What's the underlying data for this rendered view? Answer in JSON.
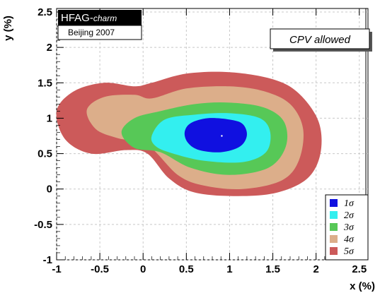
{
  "chart_data": {
    "type": "contour",
    "xlabel": "x (%)",
    "ylabel": "y (%)",
    "xlim": [
      -1.0,
      2.6
    ],
    "ylim": [
      -1.0,
      2.55
    ],
    "x_ticks": [
      "-1",
      "-0.5",
      "0",
      "0.5",
      "1",
      "1.5",
      "2",
      "2.5"
    ],
    "x_tick_values": [
      -1,
      -0.5,
      0,
      0.5,
      1,
      1.5,
      2,
      2.5
    ],
    "y_ticks": [
      "2.5",
      "2",
      "1.5",
      "1",
      "0.5",
      "0",
      "-0.5",
      "-1"
    ],
    "y_tick_values": [
      2.5,
      2,
      1.5,
      1,
      0.5,
      0,
      -0.5,
      -1
    ],
    "grid": true,
    "central_value": {
      "x": 0.91,
      "y": 0.75
    },
    "badge": {
      "title_main": "HFAG-",
      "title_sub": "charm",
      "subtitle": "Beijing 2007"
    },
    "annotation": "CPV allowed",
    "series": [
      {
        "name": "5σ",
        "color": "#cc5a5a",
        "outline": [
          [
            -1.0,
            1.1
          ],
          [
            -0.8,
            1.38
          ],
          [
            -0.45,
            1.5
          ],
          [
            -0.1,
            1.45
          ],
          [
            0.1,
            1.5
          ],
          [
            0.5,
            1.63
          ],
          [
            1.0,
            1.65
          ],
          [
            1.5,
            1.55
          ],
          [
            1.8,
            1.35
          ],
          [
            2.03,
            0.95
          ],
          [
            2.05,
            0.5
          ],
          [
            1.9,
            0.15
          ],
          [
            1.55,
            -0.05
          ],
          [
            1.1,
            -0.1
          ],
          [
            0.6,
            -0.05
          ],
          [
            0.3,
            0.15
          ],
          [
            0.05,
            0.5
          ],
          [
            -0.2,
            0.55
          ],
          [
            -0.6,
            0.5
          ],
          [
            -0.9,
            0.7
          ]
        ]
      },
      {
        "name": "4σ",
        "color": "#dcae8a",
        "outline": [
          [
            -0.65,
            1.12
          ],
          [
            -0.45,
            1.3
          ],
          [
            -0.1,
            1.33
          ],
          [
            0.1,
            1.28
          ],
          [
            0.5,
            1.42
          ],
          [
            1.0,
            1.45
          ],
          [
            1.4,
            1.38
          ],
          [
            1.7,
            1.2
          ],
          [
            1.85,
            0.85
          ],
          [
            1.8,
            0.4
          ],
          [
            1.6,
            0.12
          ],
          [
            1.15,
            0.0
          ],
          [
            0.7,
            0.05
          ],
          [
            0.4,
            0.2
          ],
          [
            0.05,
            0.62
          ],
          [
            -0.3,
            0.72
          ],
          [
            -0.55,
            0.85
          ]
        ]
      },
      {
        "name": "3σ",
        "color": "#57c857",
        "outline": [
          [
            -0.25,
            0.8
          ],
          [
            -0.1,
            1.0
          ],
          [
            0.2,
            1.1
          ],
          [
            0.6,
            1.2
          ],
          [
            1.0,
            1.22
          ],
          [
            1.4,
            1.15
          ],
          [
            1.63,
            0.95
          ],
          [
            1.65,
            0.6
          ],
          [
            1.45,
            0.3
          ],
          [
            1.0,
            0.2
          ],
          [
            0.55,
            0.3
          ],
          [
            0.2,
            0.52
          ],
          [
            -0.1,
            0.58
          ]
        ]
      },
      {
        "name": "2σ",
        "color": "#33efef",
        "outline": [
          [
            0.1,
            0.75
          ],
          [
            0.25,
            0.98
          ],
          [
            0.6,
            1.05
          ],
          [
            1.0,
            1.07
          ],
          [
            1.35,
            1.0
          ],
          [
            1.47,
            0.8
          ],
          [
            1.42,
            0.52
          ],
          [
            1.15,
            0.38
          ],
          [
            0.7,
            0.4
          ],
          [
            0.35,
            0.5
          ],
          [
            0.15,
            0.6
          ]
        ]
      },
      {
        "name": "1σ",
        "color": "#1010e0",
        "outline": [
          [
            0.48,
            0.8
          ],
          [
            0.55,
            0.93
          ],
          [
            0.75,
            1.0
          ],
          [
            1.0,
            0.98
          ],
          [
            1.15,
            0.92
          ],
          [
            1.2,
            0.76
          ],
          [
            1.12,
            0.6
          ],
          [
            0.9,
            0.52
          ],
          [
            0.65,
            0.55
          ],
          [
            0.52,
            0.65
          ]
        ]
      }
    ],
    "legend_order": [
      "1σ",
      "2σ",
      "3σ",
      "4σ",
      "5σ"
    ],
    "legend_position": "bottom-right"
  }
}
